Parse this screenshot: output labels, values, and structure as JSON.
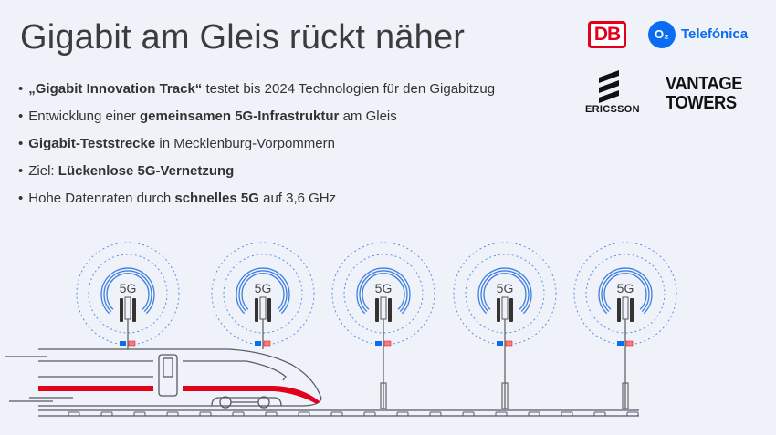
{
  "title": "Gigabit am Gleis rückt näher",
  "bullets": [
    {
      "parts": [
        {
          "t": "„Gigabit Innovation Track“",
          "b": true
        },
        {
          "t": " testet bis 2024 Technologien für den Gigabitzug",
          "b": false
        }
      ]
    },
    {
      "parts": [
        {
          "t": "Entwicklung einer ",
          "b": false
        },
        {
          "t": "gemeinsamen 5G-Infrastruktur",
          "b": true
        },
        {
          "t": " am Gleis",
          "b": false
        }
      ]
    },
    {
      "parts": [
        {
          "t": "Gigabit-Teststrecke",
          "b": true
        },
        {
          "t": " in Mecklenburg-Vorpommern",
          "b": false
        }
      ]
    },
    {
      "parts": [
        {
          "t": "Ziel: ",
          "b": false
        },
        {
          "t": "Lückenlose 5G-Vernetzung",
          "b": true
        }
      ]
    },
    {
      "parts": [
        {
          "t": "Hohe Datenraten durch ",
          "b": false
        },
        {
          "t": "schnelles 5G",
          "b": true
        },
        {
          "t": " auf 3,6 GHz",
          "b": false
        }
      ]
    }
  ],
  "logos": {
    "db": "DB",
    "o2": "O₂",
    "telefonica": "Telefónica",
    "ericsson": "ERICSSON",
    "vantage_line1": "VANTAGE",
    "vantage_line2": "TOWERS"
  },
  "masts": {
    "label": "5G",
    "count": 5
  },
  "colors": {
    "background": "#f0f2fa",
    "db_red": "#e2001a",
    "o2_blue": "#0a6cf0",
    "signal_blue": "#3d7fe0",
    "line": "#555a66"
  }
}
